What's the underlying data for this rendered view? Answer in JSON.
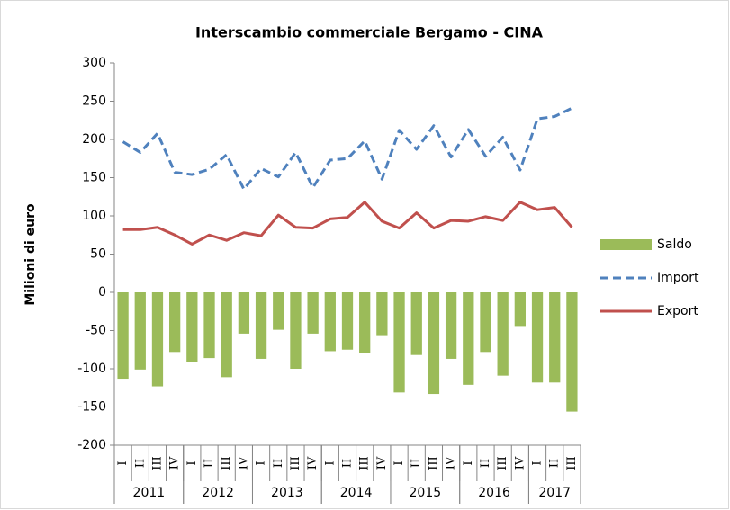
{
  "chart_data": {
    "type": "bar-line",
    "title": "Interscambio commerciale Bergamo - CINA",
    "y_label": "Milioni di euro",
    "categories": [
      "I",
      "II",
      "III",
      "IV",
      "I",
      "II",
      "III",
      "IV",
      "I",
      "II",
      "III",
      "IV",
      "I",
      "II",
      "III",
      "IV",
      "I",
      "II",
      "III",
      "IV",
      "I",
      "II",
      "III",
      "IV",
      "I",
      "II",
      "III"
    ],
    "year_groups": [
      {
        "label": "2011",
        "span": 4
      },
      {
        "label": "2012",
        "span": 4
      },
      {
        "label": "2013",
        "span": 4
      },
      {
        "label": "2014",
        "span": 4
      },
      {
        "label": "2015",
        "span": 4
      },
      {
        "label": "2016",
        "span": 4
      },
      {
        "label": "2017",
        "span": 3
      }
    ],
    "series": [
      {
        "name": "Saldo",
        "kind": "bar",
        "color": "#9bbb59",
        "values": [
          -113,
          -101,
          -123,
          -78,
          -91,
          -86,
          -111,
          -54,
          -87,
          -49,
          -100,
          -54,
          -77,
          -75,
          -79,
          -56,
          -131,
          -82,
          -133,
          -87,
          -121,
          -78,
          -109,
          -44,
          -118,
          -118,
          -156
        ]
      },
      {
        "name": "Import",
        "kind": "line",
        "dashed": true,
        "color": "#4f81bd",
        "values": [
          197,
          183,
          208,
          157,
          154,
          161,
          180,
          135,
          162,
          151,
          183,
          137,
          173,
          175,
          198,
          148,
          212,
          187,
          218,
          177,
          213,
          178,
          203,
          160,
          227,
          230,
          241
        ]
      },
      {
        "name": "Export",
        "kind": "line",
        "dashed": false,
        "color": "#c0504d",
        "values": [
          82,
          82,
          85,
          75,
          63,
          75,
          68,
          78,
          74,
          101,
          85,
          84,
          96,
          98,
          118,
          93,
          84,
          104,
          84,
          94,
          93,
          99,
          94,
          118,
          108,
          111,
          85
        ]
      }
    ],
    "ylim": [
      -200,
      300
    ],
    "yticks": [
      -200,
      -150,
      -100,
      -50,
      0,
      50,
      100,
      150,
      200,
      250,
      300
    ],
    "legend": "right"
  }
}
